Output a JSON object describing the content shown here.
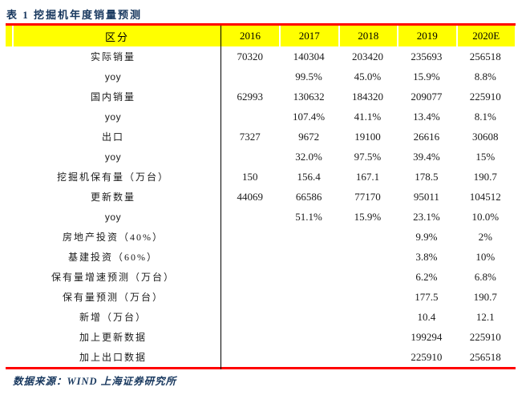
{
  "title": "表 1 挖掘机年度销量预测",
  "table": {
    "header": {
      "region_label": "区分",
      "years": [
        "2016",
        "2017",
        "2018",
        "2019",
        "2020E"
      ]
    },
    "rows": [
      {
        "label": "实际销量",
        "values": [
          "70320",
          "140304",
          "203420",
          "235693",
          "256518"
        ]
      },
      {
        "label": "yoy",
        "values": [
          "",
          "99.5%",
          "45.0%",
          "15.9%",
          "8.8%"
        ]
      },
      {
        "label": "国内销量",
        "values": [
          "62993",
          "130632",
          "184320",
          "209077",
          "225910"
        ]
      },
      {
        "label": "yoy",
        "values": [
          "",
          "107.4%",
          "41.1%",
          "13.4%",
          "8.1%"
        ]
      },
      {
        "label": "出口",
        "values": [
          "7327",
          "9672",
          "19100",
          "26616",
          "30608"
        ]
      },
      {
        "label": "yoy",
        "values": [
          "",
          "32.0%",
          "97.5%",
          "39.4%",
          "15%"
        ]
      },
      {
        "label": "挖掘机保有量（万台）",
        "values": [
          "150",
          "156.4",
          "167.1",
          "178.5",
          "190.7"
        ]
      },
      {
        "label": "更新数量",
        "values": [
          "44069",
          "66586",
          "77170",
          "95011",
          "104512"
        ]
      },
      {
        "label": "yoy",
        "values": [
          "",
          "51.1%",
          "15.9%",
          "23.1%",
          "10.0%"
        ]
      },
      {
        "label": "房地产投资（40%）",
        "values": [
          "",
          "",
          "",
          "9.9%",
          "2%"
        ]
      },
      {
        "label": "基建投资（60%）",
        "values": [
          "",
          "",
          "",
          "3.8%",
          "10%"
        ]
      },
      {
        "label": "保有量增速预测（万台）",
        "values": [
          "",
          "",
          "",
          "6.2%",
          "6.8%"
        ]
      },
      {
        "label": "保有量预测（万台）",
        "values": [
          "",
          "",
          "",
          "177.5",
          "190.7"
        ]
      },
      {
        "label": "新增（万台）",
        "values": [
          "",
          "",
          "",
          "10.4",
          "12.1"
        ]
      },
      {
        "label": "加上更新数据",
        "values": [
          "",
          "",
          "",
          "199294",
          "225910"
        ]
      },
      {
        "label": "加上出口数据",
        "values": [
          "",
          "",
          "",
          "225910",
          "256518"
        ]
      }
    ]
  },
  "footer": {
    "source": "数据来源：WIND 上海证券研究所"
  },
  "colors": {
    "accent_red": "#FF0000",
    "header_yellow": "#FFFF00",
    "navy": "#17375E",
    "body_text": "#1A1A1A"
  }
}
